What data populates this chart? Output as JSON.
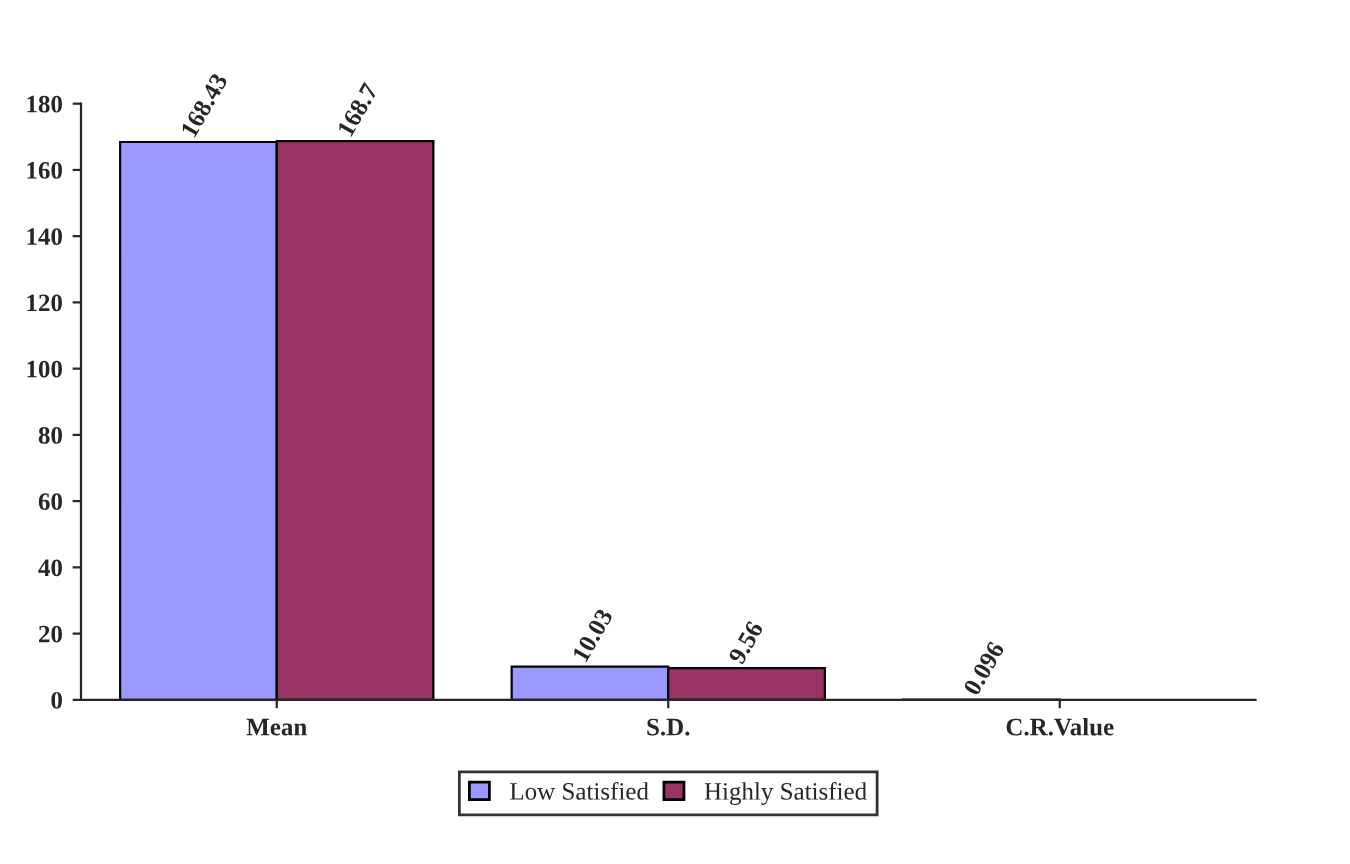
{
  "chart_data": {
    "type": "bar",
    "categories": [
      "Mean",
      "S.D.",
      "C.R.Value"
    ],
    "series": [
      {
        "name": "Low Satisfied",
        "color": "#9999ff",
        "values": [
          168.43,
          10.03,
          0.096
        ],
        "value_labels": [
          "168.43",
          "10.03",
          "0.096"
        ]
      },
      {
        "name": "Highly Satisfied",
        "color": "#993366",
        "values": [
          168.7,
          9.56,
          null
        ],
        "value_labels": [
          "168.7",
          "9.56",
          null
        ]
      }
    ],
    "ylim": [
      0,
      180
    ],
    "yticks": [
      0,
      20,
      40,
      60,
      80,
      100,
      120,
      140,
      160,
      180
    ],
    "grid": false,
    "legend": "bottom"
  }
}
